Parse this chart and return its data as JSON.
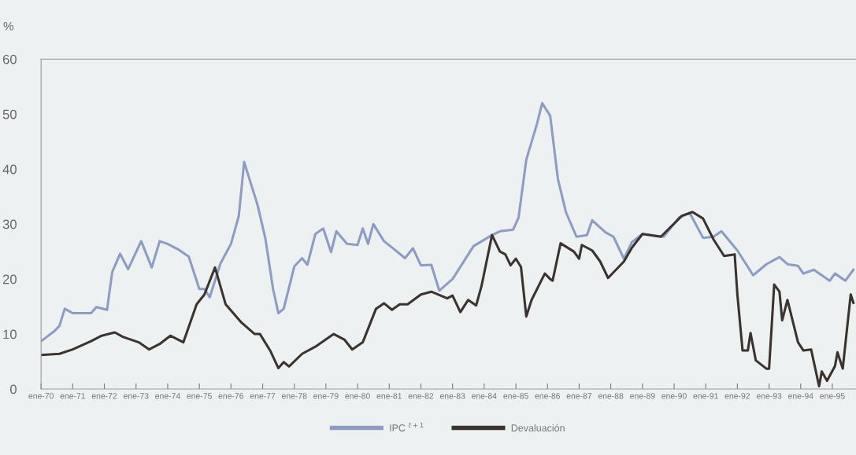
{
  "chart_data": {
    "type": "line",
    "ylabel": "%",
    "legend": "bottom",
    "grid": false,
    "xlim": [
      "1970-01",
      "1995-10"
    ],
    "xticks": [
      {
        "value": "1970-01",
        "label": "ene-70"
      },
      {
        "value": "1971-01",
        "label": "ene-71"
      },
      {
        "value": "1972-01",
        "label": "ene-72"
      },
      {
        "value": "1973-01",
        "label": "ene-73"
      },
      {
        "value": "1974-01",
        "label": "ene-74"
      },
      {
        "value": "1975-01",
        "label": "ene-75"
      },
      {
        "value": "1976-01",
        "label": "ene-76"
      },
      {
        "value": "1977-01",
        "label": "ene-77"
      },
      {
        "value": "1978-01",
        "label": "ene-78"
      },
      {
        "value": "1979-01",
        "label": "ene-79"
      },
      {
        "value": "1980-01",
        "label": "ene-80"
      },
      {
        "value": "1981-01",
        "label": "ene-81"
      },
      {
        "value": "1982-01",
        "label": "ene-82"
      },
      {
        "value": "1983-01",
        "label": "ene-83"
      },
      {
        "value": "1984-01",
        "label": "ene-84"
      },
      {
        "value": "1985-01",
        "label": "ene-85"
      },
      {
        "value": "1986-01",
        "label": "ene-86"
      },
      {
        "value": "1987-01",
        "label": "ene-87"
      },
      {
        "value": "1988-01",
        "label": "ene-88"
      },
      {
        "value": "1989-01",
        "label": "ene-89"
      },
      {
        "value": "1990-01",
        "label": "ene-90"
      },
      {
        "value": "1991-01",
        "label": "ene-91"
      },
      {
        "value": "1992-01",
        "label": "ene-92"
      },
      {
        "value": "1993-01",
        "label": "ene-93"
      },
      {
        "value": "1994-01",
        "label": "ene-94"
      },
      {
        "value": "1995-01",
        "label": "ene-95"
      }
    ],
    "ylim": [
      0,
      60
    ],
    "yticks": [
      0,
      10,
      20,
      30,
      40,
      50,
      60
    ],
    "series": [
      {
        "name": "IPC $^{t+1}$",
        "color": "#8e9cc4",
        "x": [
          "1970-01",
          "1970-06",
          "1970-08",
          "1970-10",
          "1971-01",
          "1971-08",
          "1971-10",
          "1972-02",
          "1972-04",
          "1972-07",
          "1972-10",
          "1973-03",
          "1973-07",
          "1973-10",
          "1974-01",
          "1974-05",
          "1974-09",
          "1975-01",
          "1975-03",
          "1975-05",
          "1975-09",
          "1976-01",
          "1976-04",
          "1976-06",
          "1976-11",
          "1977-02",
          "1977-05",
          "1977-07",
          "1977-09",
          "1978-01",
          "1978-04",
          "1978-06",
          "1978-09",
          "1978-12",
          "1979-03",
          "1979-05",
          "1979-09",
          "1980-01",
          "1980-03",
          "1980-05",
          "1980-07",
          "1980-11",
          "1981-03",
          "1981-07",
          "1981-10",
          "1982-01",
          "1982-05",
          "1982-08",
          "1983-01",
          "1983-09",
          "1984-04",
          "1984-07",
          "1984-12",
          "1985-02",
          "1985-05",
          "1985-09",
          "1985-11",
          "1986-02",
          "1986-05",
          "1986-08",
          "1986-12",
          "1987-04",
          "1987-06",
          "1987-11",
          "1988-02",
          "1988-06",
          "1988-09",
          "1989-01",
          "1989-09",
          "1990-03",
          "1990-07",
          "1990-12",
          "1991-04",
          "1991-07",
          "1992-01",
          "1992-07",
          "1992-12",
          "1993-05",
          "1993-08",
          "1993-12",
          "1994-02",
          "1994-06",
          "1994-12",
          "1995-02",
          "1995-06",
          "1995-09"
        ],
        "values": [
          8.7,
          10.5,
          11.5,
          14.6,
          13.8,
          13.8,
          14.9,
          14.4,
          21.3,
          24.6,
          21.8,
          26.9,
          22.1,
          26.9,
          26.4,
          25.4,
          24.1,
          18.2,
          18.2,
          16.7,
          22.8,
          26.4,
          31.5,
          41.3,
          33.6,
          27.4,
          18.2,
          13.8,
          14.6,
          22.3,
          23.8,
          22.6,
          28.2,
          29.2,
          24.9,
          28.7,
          26.4,
          26.2,
          29.2,
          26.4,
          30.0,
          26.9,
          25.4,
          23.8,
          25.6,
          22.5,
          22.6,
          17.9,
          20.0,
          26.0,
          28.0,
          28.7,
          29.0,
          31.2,
          41.7,
          48.2,
          52.0,
          49.7,
          38.2,
          32.2,
          27.7,
          28.0,
          30.7,
          28.5,
          27.7,
          23.7,
          26.7,
          28.2,
          27.7,
          31.2,
          32.0,
          27.5,
          27.7,
          28.7,
          25.2,
          20.7,
          22.7,
          24.0,
          22.7,
          22.4,
          21.0,
          21.7,
          19.7,
          21.0,
          19.7,
          21.7
        ]
      },
      {
        "name": "Devaluación",
        "color": "#3a3330",
        "x": [
          "1970-01",
          "1970-08",
          "1971-01",
          "1971-08",
          "1971-12",
          "1972-05",
          "1972-08",
          "1973-02",
          "1973-06",
          "1973-10",
          "1974-02",
          "1974-07",
          "1974-12",
          "1975-03",
          "1975-07",
          "1975-11",
          "1976-05",
          "1976-10",
          "1976-12",
          "1977-04",
          "1977-07",
          "1977-09",
          "1977-11",
          "1978-04",
          "1978-09",
          "1979-04",
          "1979-08",
          "1979-11",
          "1980-03",
          "1980-08",
          "1980-11",
          "1981-02",
          "1981-05",
          "1981-08",
          "1982-01",
          "1982-05",
          "1982-11",
          "1983-01",
          "1983-04",
          "1983-07",
          "1983-10",
          "1983-12",
          "1984-04",
          "1984-07",
          "1984-09",
          "1984-11",
          "1985-01",
          "1985-03",
          "1985-05",
          "1985-07",
          "1985-12",
          "1986-02",
          "1986-03",
          "1986-06",
          "1986-11",
          "1987-01",
          "1987-02",
          "1987-06",
          "1987-09",
          "1987-12",
          "1988-06",
          "1988-09",
          "1989-01",
          "1989-08",
          "1990-04",
          "1990-08",
          "1990-12",
          "1991-04",
          "1991-08",
          "1991-12",
          "1992-01",
          "1992-03",
          "1992-05",
          "1992-06",
          "1992-08",
          "1992-12",
          "1993-01",
          "1993-03",
          "1993-05",
          "1993-06",
          "1993-08",
          "1993-12",
          "1994-02",
          "1994-05",
          "1994-08",
          "1994-09",
          "1994-11",
          "1995-02",
          "1995-03",
          "1995-05",
          "1995-08",
          "1995-09"
        ],
        "values": [
          6.2,
          6.4,
          7.2,
          8.7,
          9.7,
          10.3,
          9.5,
          8.5,
          7.2,
          8.2,
          9.7,
          8.5,
          15.4,
          17.2,
          22.1,
          15.4,
          12.1,
          10.0,
          10.0,
          6.9,
          3.8,
          4.9,
          4.1,
          6.4,
          7.7,
          10.0,
          9.0,
          7.2,
          8.5,
          14.6,
          15.6,
          14.4,
          15.4,
          15.4,
          17.2,
          17.7,
          16.5,
          17.0,
          14.0,
          16.2,
          15.2,
          18.7,
          28.0,
          25.0,
          24.5,
          22.5,
          23.7,
          22.2,
          13.2,
          16.2,
          21.0,
          20.0,
          19.7,
          26.5,
          25.0,
          23.7,
          26.2,
          25.2,
          23.2,
          20.2,
          23.2,
          25.7,
          28.2,
          27.7,
          31.5,
          32.2,
          31.0,
          27.2,
          24.2,
          24.5,
          17.2,
          7.0,
          7.0,
          10.2,
          5.2,
          3.7,
          3.7,
          19.0,
          17.7,
          12.5,
          16.2,
          8.5,
          7.0,
          7.2,
          0.5,
          3.2,
          1.5,
          4.2,
          6.7,
          3.7,
          17.2,
          15.7
        ]
      }
    ]
  }
}
